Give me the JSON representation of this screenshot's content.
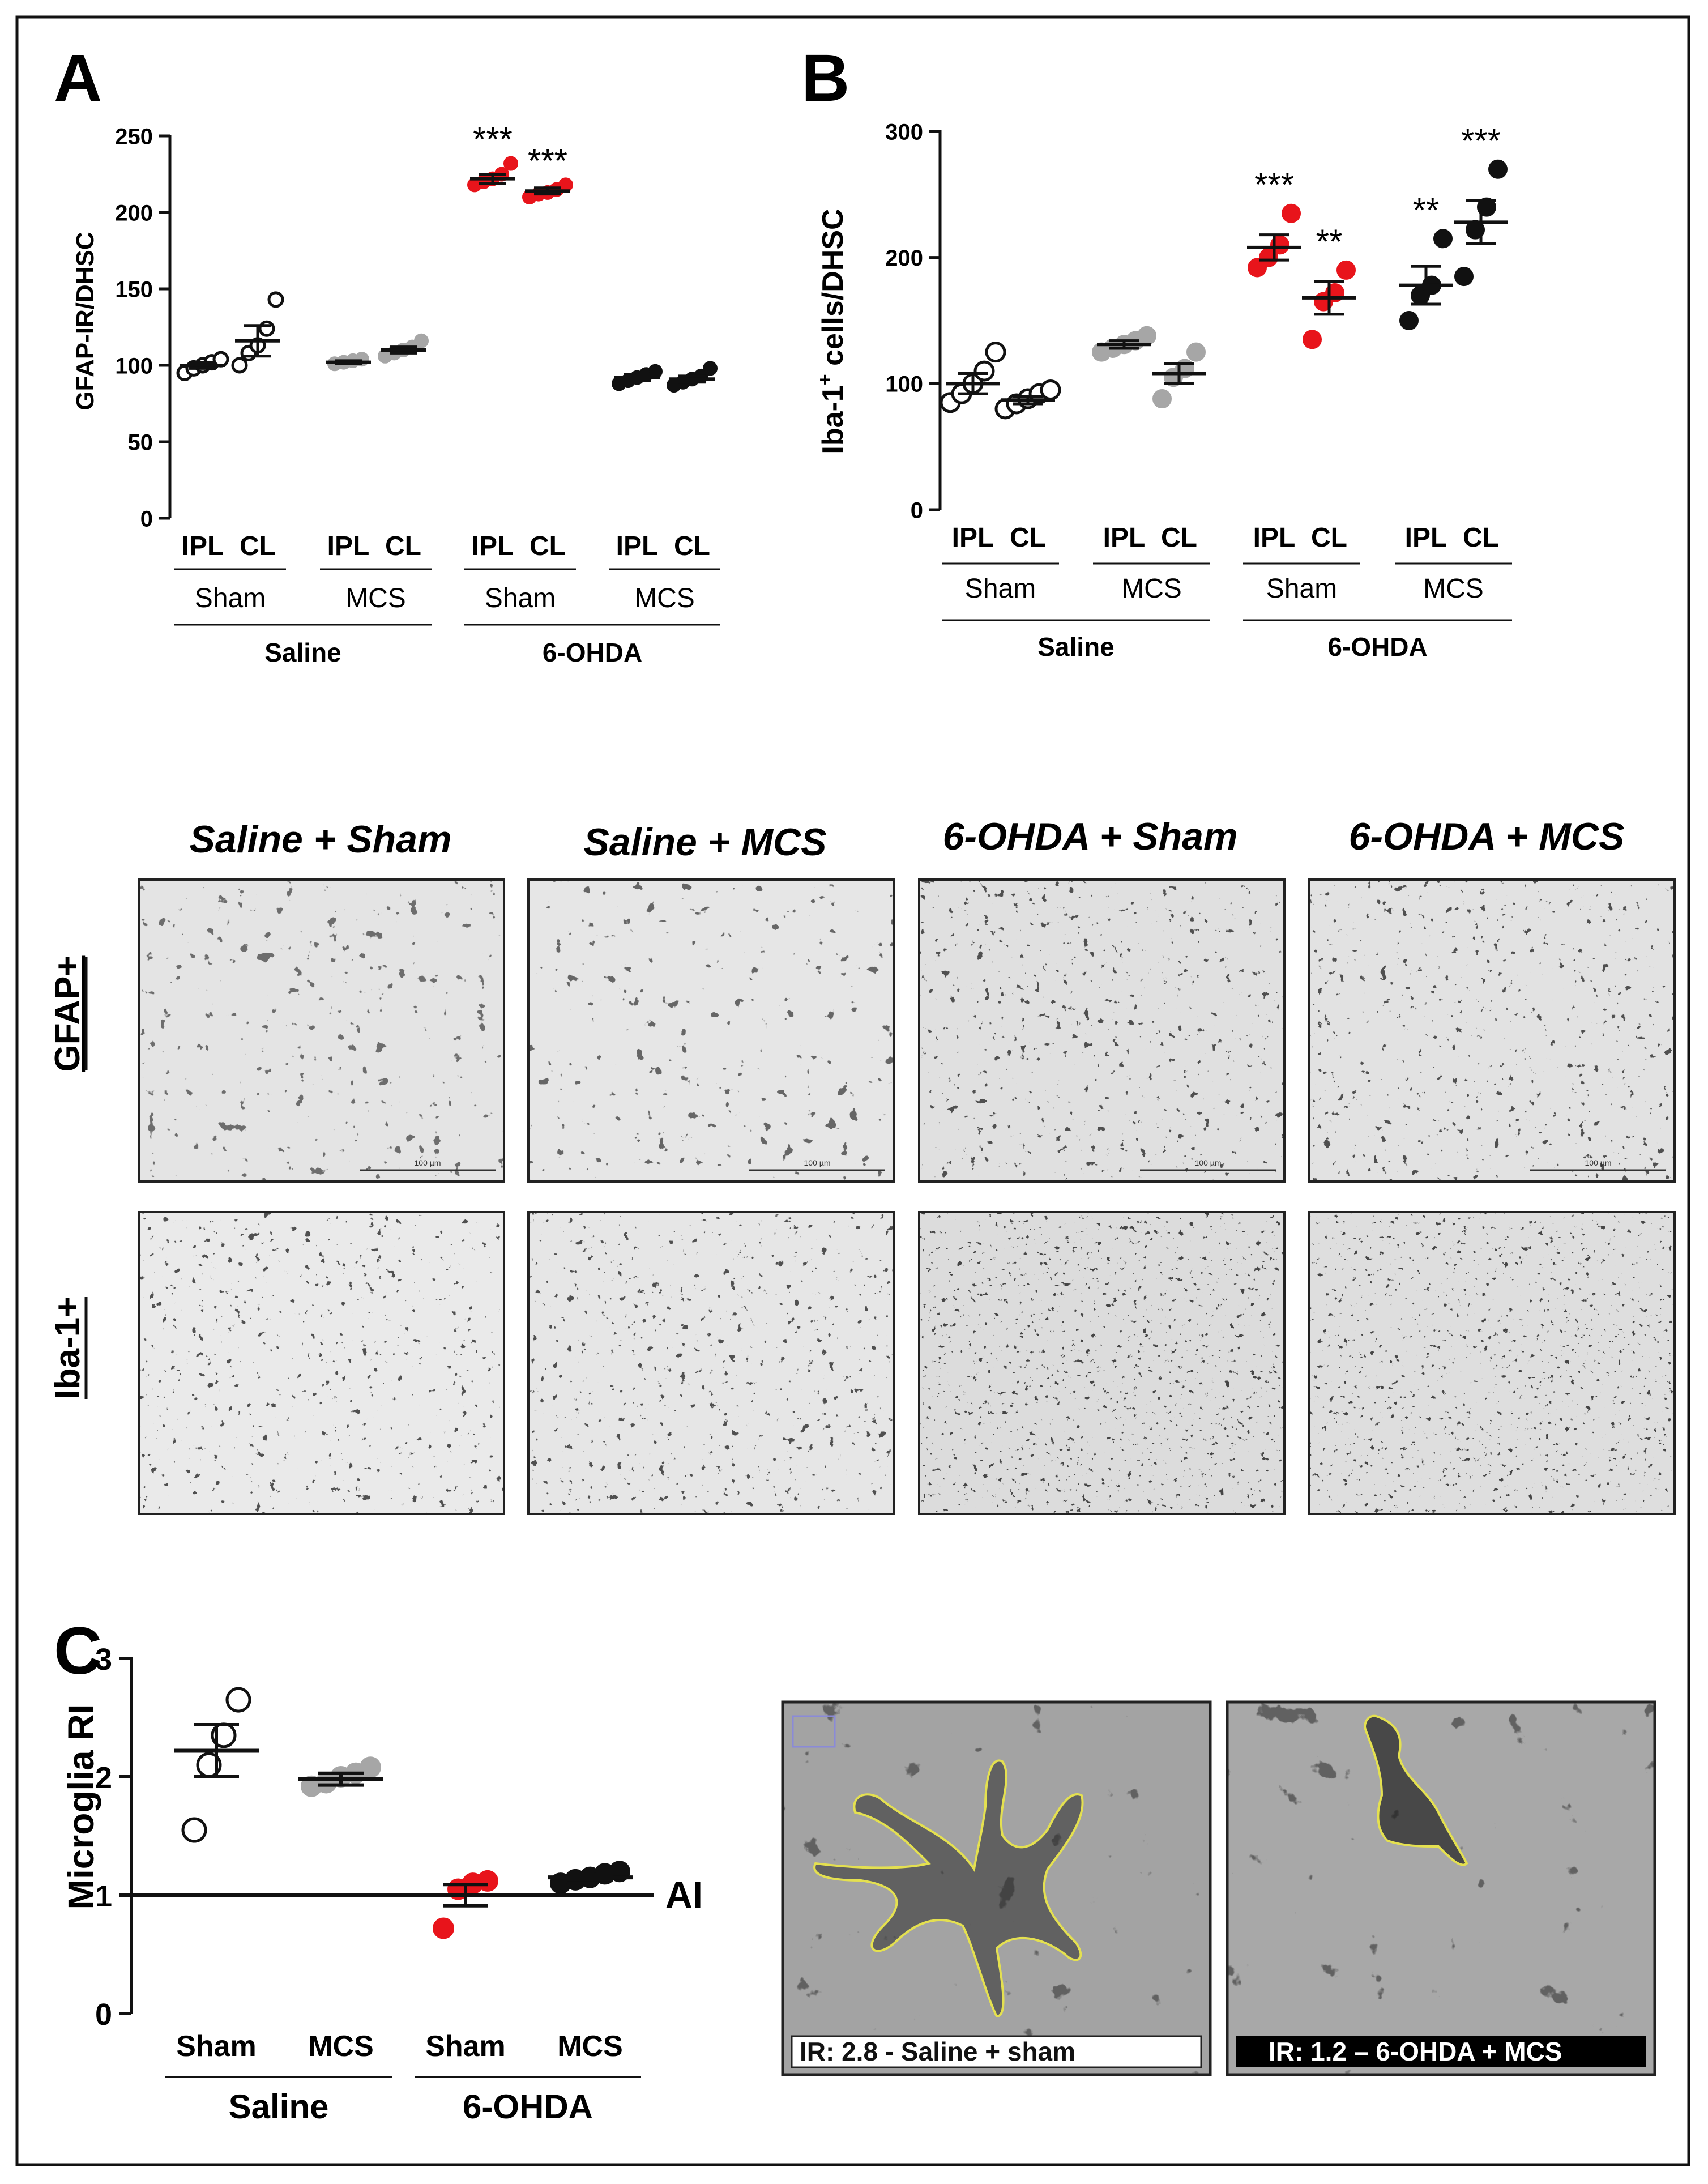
{
  "panels": {
    "A": {
      "letter": "A",
      "chart_data": {
        "type": "scatter",
        "ylabel": "GFAP-IR/DHSC",
        "ylim": [
          0,
          250
        ],
        "yticks": [
          0,
          50,
          100,
          150,
          200,
          250
        ],
        "categories": [
          "IPL",
          "CL",
          "IPL",
          "CL",
          "IPL",
          "CL",
          "IPL",
          "CL"
        ],
        "subgroups": [
          "Sham",
          "MCS",
          "Sham",
          "MCS"
        ],
        "groups": [
          "Saline",
          "6-OHDA"
        ],
        "series": [
          {
            "points": [
              95,
              98,
              100,
              102,
              104
            ],
            "mean": 100,
            "sem": 2,
            "fill": "none"
          },
          {
            "points": [
              100,
              108,
              113,
              124,
              143
            ],
            "mean": 116,
            "sem": 10,
            "fill": "none"
          },
          {
            "points": [
              101,
              102,
              103,
              104
            ],
            "mean": 102,
            "sem": 1,
            "fill": "gray"
          },
          {
            "points": [
              106,
              108,
              110,
              112,
              116
            ],
            "mean": 110,
            "sem": 2,
            "fill": "gray"
          },
          {
            "points": [
              218,
              220,
              222,
              225,
              232
            ],
            "mean": 222,
            "sem": 3,
            "fill": "red"
          },
          {
            "points": [
              210,
              212,
              213,
              215,
              218
            ],
            "mean": 214,
            "sem": 2,
            "fill": "red"
          },
          {
            "points": [
              88,
              90,
              92,
              94,
              96
            ],
            "mean": 92,
            "sem": 2,
            "fill": "black"
          },
          {
            "points": [
              87,
              89,
              91,
              93,
              98
            ],
            "mean": 91,
            "sem": 2,
            "fill": "black"
          }
        ],
        "annotations": [
          "",
          "",
          "",
          "",
          "***",
          "***",
          "",
          ""
        ]
      }
    },
    "B": {
      "letter": "B",
      "chart_data": {
        "type": "scatter",
        "ylabel_pre": "Iba-1",
        "ylabel_sup": "+",
        "ylabel_post": " cells/DHSC",
        "ylim": [
          0,
          300
        ],
        "yticks": [
          0,
          100,
          200,
          300
        ],
        "categories": [
          "IPL",
          "CL",
          "IPL",
          "CL",
          "IPL",
          "CL",
          "IPL",
          "CL"
        ],
        "subgroups": [
          "Sham",
          "MCS",
          "Sham",
          "MCS"
        ],
        "groups": [
          "Saline",
          "6-OHDA"
        ],
        "series": [
          {
            "points": [
              85,
              92,
              100,
              110,
              125
            ],
            "mean": 100,
            "sem": 8,
            "fill": "none"
          },
          {
            "points": [
              80,
              84,
              88,
              92,
              95
            ],
            "mean": 87,
            "sem": 3,
            "fill": "none"
          },
          {
            "points": [
              125,
              128,
              131,
              134,
              138
            ],
            "mean": 131,
            "sem": 3,
            "fill": "gray"
          },
          {
            "points": [
              88,
              105,
              112,
              125
            ],
            "mean": 108,
            "sem": 8,
            "fill": "gray"
          },
          {
            "points": [
              192,
              200,
              210,
              235
            ],
            "mean": 208,
            "sem": 10,
            "fill": "red"
          },
          {
            "points": [
              135,
              165,
              172,
              190
            ],
            "mean": 168,
            "sem": 13,
            "fill": "red"
          },
          {
            "points": [
              150,
              170,
              178,
              215
            ],
            "mean": 178,
            "sem": 15,
            "fill": "black"
          },
          {
            "points": [
              185,
              222,
              240,
              270
            ],
            "mean": 228,
            "sem": 17,
            "fill": "black"
          }
        ],
        "annotations": [
          "",
          "",
          "",
          "",
          "***",
          "**",
          "**",
          "***"
        ]
      }
    },
    "C": {
      "letter": "C",
      "chart_data": {
        "type": "scatter",
        "ylabel": "Microglia RI",
        "ylim": [
          0,
          3
        ],
        "yticks": [
          0,
          1,
          2,
          3
        ],
        "categories": [
          "Sham",
          "MCS",
          "Sham",
          "MCS"
        ],
        "groups": [
          "Saline",
          "6-OHDA"
        ],
        "series": [
          {
            "points": [
              1.55,
              2.1,
              2.35,
              2.65
            ],
            "mean": 2.22,
            "sem": 0.22,
            "fill": "none"
          },
          {
            "points": [
              1.92,
              1.95,
              2.0,
              2.03,
              2.08
            ],
            "mean": 1.98,
            "sem": 0.05,
            "fill": "gray"
          },
          {
            "points": [
              0.72,
              1.05,
              1.1,
              1.12
            ],
            "mean": 1.0,
            "sem": 0.09,
            "fill": "red"
          },
          {
            "points": [
              1.1,
              1.13,
              1.15,
              1.18,
              1.2
            ],
            "mean": 1.15,
            "sem": 0.02,
            "fill": "black"
          }
        ],
        "reference_line": {
          "value": 1,
          "label": "AI"
        }
      }
    }
  },
  "micrographs": {
    "column_titles": [
      "Saline + Sham",
      "Saline + MCS",
      "6-OHDA + Sham",
      "6-OHDA + MCS"
    ],
    "row_labels": [
      "GFAP+",
      "Iba-1+"
    ],
    "scale_label": "100 µm"
  },
  "zoom_images": [
    {
      "caption": "IR: 2.8 - Saline + sham"
    },
    {
      "caption": "IR: 1.2 – 6-OHDA + MCS"
    }
  ],
  "colors": {
    "red": "#e8141b",
    "gray": "#a6a6a6",
    "black": "#111111",
    "outline": "#111111"
  }
}
